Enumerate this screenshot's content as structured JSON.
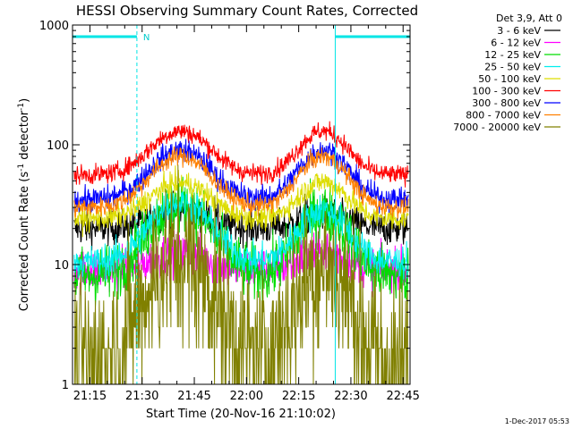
{
  "chart_data": {
    "type": "line",
    "title": "HESSI Observing Summary Count Rates, Corrected",
    "xlabel": "Start Time (20-Nov-16 21:10:02)",
    "ylabel_main": "Corrected Count Rate (s",
    "ylabel_sup1": "-1",
    "ylabel_mid": " detector",
    "ylabel_sup2": "-1",
    "ylabel_end": ")",
    "y_scale": "log",
    "ylim": [
      1,
      1000
    ],
    "xlim_minutes": [
      0,
      97
    ],
    "x_tick_labels": [
      "21:15",
      "21:30",
      "21:45",
      "22:00",
      "22:15",
      "22:30",
      "22:45"
    ],
    "x_tick_minutes": [
      5,
      20,
      35,
      50,
      65,
      80,
      95
    ],
    "y_tick_labels": [
      "1",
      "10",
      "100",
      "1000"
    ],
    "y_tick_values": [
      1,
      10,
      100,
      1000
    ],
    "legend_title": "Det 3,9, Att 0",
    "legend_position": "right-outside-top",
    "night_marker_label": "N",
    "timestamp": "1-Dec-2017 05:53",
    "night_segments_minutes": [
      [
        0,
        18.5
      ],
      [
        75.5,
        97
      ]
    ],
    "series": [
      {
        "name": "3 - 6 keV",
        "color": "#000000",
        "base": 20,
        "peak": 28,
        "noise": 0.07,
        "p2scale": 0.85
      },
      {
        "name": "6 - 12 keV",
        "color": "#ff00ff",
        "base": 9,
        "peak": 12.5,
        "noise": 0.09,
        "p2scale": 1.1
      },
      {
        "name": "12 - 25 keV",
        "color": "#00dd00",
        "base": 8,
        "peak": 32,
        "noise": 0.12,
        "p2scale": 0.8
      },
      {
        "name": "25 - 50 keV",
        "color": "#00eeee",
        "base": 10.5,
        "peak": 33,
        "noise": 0.07,
        "p2scale": 0.8
      },
      {
        "name": "50 - 100 keV",
        "color": "#dddd00",
        "base": 24,
        "peak": 48,
        "noise": 0.05,
        "p2scale": 1.05
      },
      {
        "name": "100 - 300 keV",
        "color": "#ff0000",
        "base": 56,
        "peak": 130,
        "noise": 0.04,
        "p2scale": 1.0
      },
      {
        "name": "300 - 800 keV",
        "color": "#0000ff",
        "base": 35,
        "peak": 90,
        "noise": 0.05,
        "p2scale": 1.0
      },
      {
        "name": "800 - 7000 keV",
        "color": "#ff8000",
        "base": 30,
        "peak": 80,
        "noise": 0.04,
        "p2scale": 1.0
      },
      {
        "name": "7000 - 20000 keV",
        "color": "#808000",
        "base": 1.6,
        "peak": 11,
        "noise": 0.35,
        "p2scale": 0.85
      }
    ]
  }
}
